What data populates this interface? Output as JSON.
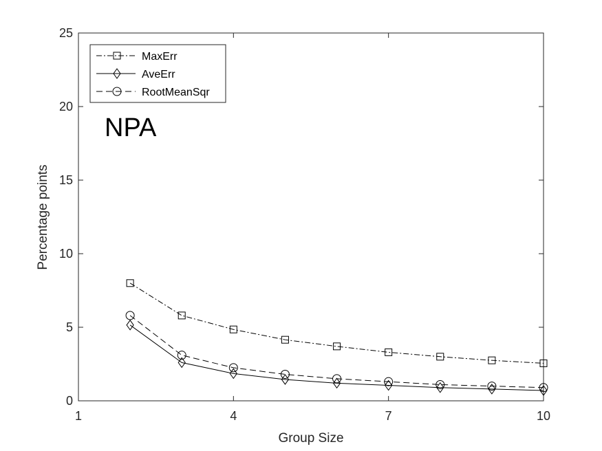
{
  "chart_data": {
    "type": "line",
    "title": "",
    "annotation": "NPA",
    "xlabel": "Group Size",
    "ylabel": "Percentage points",
    "xlim": [
      1,
      10
    ],
    "ylim": [
      0,
      25
    ],
    "xticks": [
      1,
      4,
      7,
      10
    ],
    "yticks": [
      0,
      5,
      10,
      15,
      20,
      25
    ],
    "x": [
      2,
      3,
      4,
      5,
      6,
      7,
      8,
      9,
      10
    ],
    "legend_position": "top-left",
    "grid": false,
    "series": [
      {
        "name": "MaxErr",
        "marker": "square",
        "line": "dash-dot",
        "values": [
          8.0,
          5.8,
          4.85,
          4.15,
          3.7,
          3.3,
          3.0,
          2.75,
          2.55
        ]
      },
      {
        "name": "AveErr",
        "marker": "diamond",
        "line": "solid",
        "values": [
          5.15,
          2.6,
          1.85,
          1.45,
          1.2,
          1.05,
          0.9,
          0.8,
          0.7
        ]
      },
      {
        "name": "RootMeanSqr",
        "marker": "circle",
        "line": "dashed",
        "values": [
          5.8,
          3.1,
          2.25,
          1.8,
          1.5,
          1.3,
          1.1,
          1.0,
          0.9
        ]
      }
    ],
    "colors": {
      "axis": "#262626",
      "line": "#000000",
      "background": "#ffffff"
    }
  }
}
